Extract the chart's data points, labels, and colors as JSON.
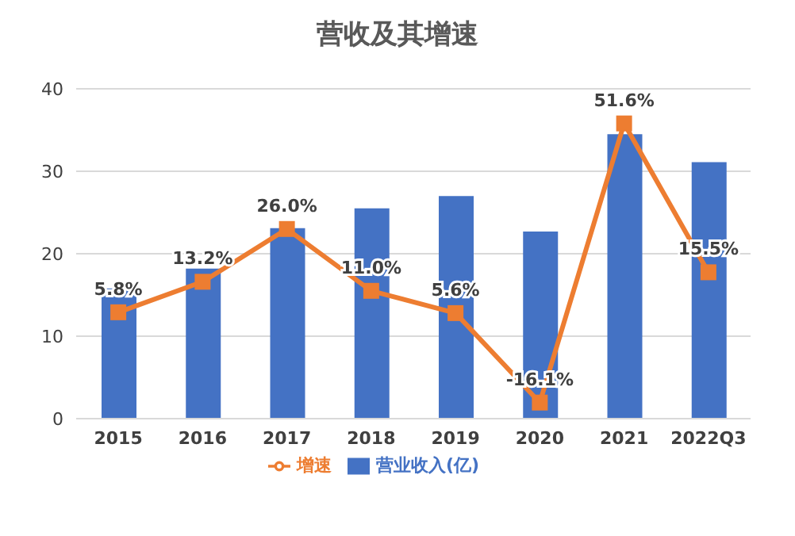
{
  "chart_data": {
    "type": "bar",
    "title": "营收及其增速",
    "categories": [
      "2015",
      "2016",
      "2017",
      "2018",
      "2019",
      "2020",
      "2021",
      "2022Q3"
    ],
    "series": [
      {
        "name": "营业收入(亿)",
        "color": "#4472c4",
        "values": [
          15.8,
          18.2,
          23.1,
          25.5,
          27.0,
          22.7,
          34.5,
          31.1
        ]
      },
      {
        "name": "增速",
        "type": "line",
        "axis": "y2",
        "color": "#ed7d31",
        "marker": "square",
        "values": [
          5.8,
          13.2,
          26.0,
          11.0,
          5.6,
          -16.1,
          51.6,
          15.5
        ],
        "value_labels": [
          "5.8%",
          "13.2%",
          "26.0%",
          "11.0%",
          "5.6%",
          "-16.1%",
          "51.6%",
          "15.5%"
        ]
      }
    ],
    "ylim": [
      0,
      40
    ],
    "yticks": [
      0,
      10,
      20,
      30,
      40
    ],
    "y2lim": [
      -20,
      60
    ],
    "tick_labels": "xy",
    "grid": "y",
    "legend": "bottom"
  }
}
